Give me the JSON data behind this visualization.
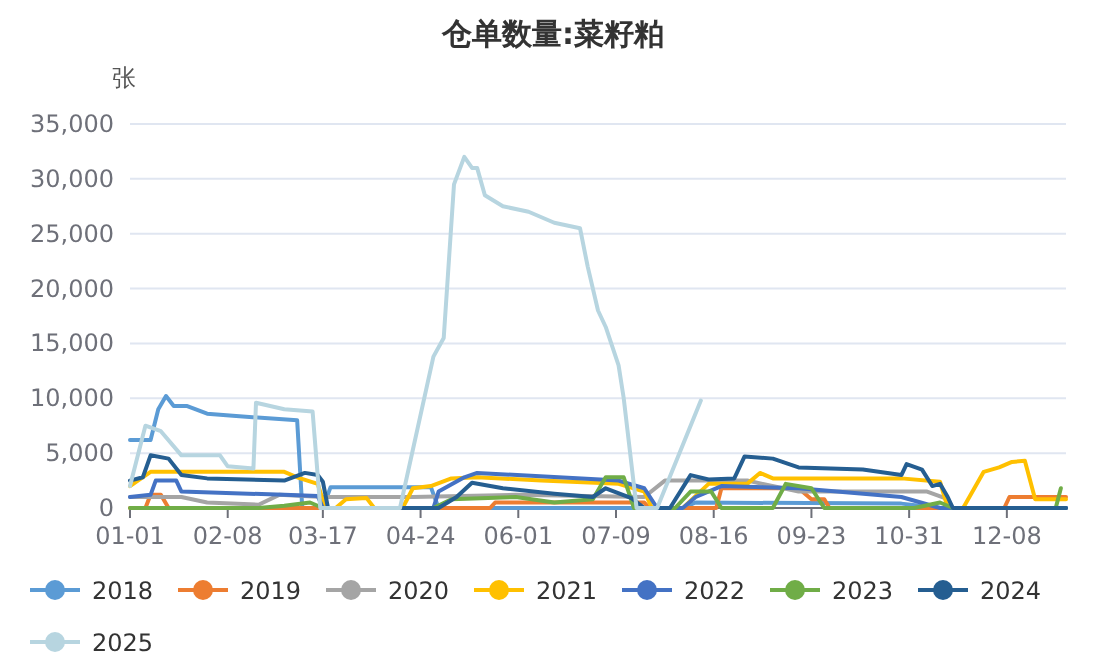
{
  "chart_data": {
    "type": "line",
    "title": "仓单数量:菜籽粕",
    "ylabel": "张",
    "xlim": [
      "--01-01",
      "--12-31"
    ],
    "xticks": [
      {
        "value": "--01-01",
        "label": "01-01"
      },
      {
        "value": "--02-08",
        "label": "02-08"
      },
      {
        "value": "--03-17",
        "label": "03-17"
      },
      {
        "value": "--04-24",
        "label": "04-24"
      },
      {
        "value": "--06-01",
        "label": "06-01"
      },
      {
        "value": "--07-09",
        "label": "07-09"
      },
      {
        "value": "--08-16",
        "label": "08-16"
      },
      {
        "value": "--09-23",
        "label": "09-23"
      },
      {
        "value": "--10-31",
        "label": "10-31"
      },
      {
        "value": "--12-08",
        "label": "12-08"
      }
    ],
    "ylim": [
      0,
      35000
    ],
    "yticks": [
      {
        "value": 0,
        "label": "0"
      },
      {
        "value": 5000,
        "label": "5,000"
      },
      {
        "value": 10000,
        "label": "10,000"
      },
      {
        "value": 15000,
        "label": "15,000"
      },
      {
        "value": 20000,
        "label": "20,000"
      },
      {
        "value": 25000,
        "label": "25,000"
      },
      {
        "value": 30000,
        "label": "30,000"
      },
      {
        "value": 35000,
        "label": "35,000"
      }
    ],
    "grid": "y",
    "legend": "bottom",
    "marker": "none",
    "line_style": "solid",
    "series": [
      {
        "name": "2018",
        "color": "#5b9bd5",
        "x": [
          "--01-01",
          "--01-09",
          "--01-12",
          "--01-15",
          "--01-18",
          "--01-23",
          "--01-31",
          "--02-10",
          "--03-07",
          "--03-09",
          "--03-17",
          "--03-20",
          "--04-28",
          "--05-01",
          "--08-04",
          "--08-09",
          "--10-28",
          "--11-12",
          "--12-31"
        ],
        "values": [
          6200,
          6200,
          9000,
          10200,
          9300,
          9300,
          8600,
          8400,
          8000,
          0,
          0,
          1900,
          1900,
          0,
          0,
          500,
          400,
          0,
          0
        ]
      },
      {
        "name": "2019",
        "color": "#ed7d31",
        "x": [
          "--01-01",
          "--01-07",
          "--01-09",
          "--01-13",
          "--01-16",
          "--05-21",
          "--05-23",
          "--07-20",
          "--07-22",
          "--08-17",
          "--08-19",
          "--09-18",
          "--09-23",
          "--09-28",
          "--09-30",
          "--12-07",
          "--12-09",
          "--12-31"
        ],
        "values": [
          0,
          0,
          1200,
          1200,
          0,
          0,
          500,
          500,
          0,
          0,
          1800,
          1800,
          800,
          800,
          0,
          0,
          1000,
          1000
        ]
      },
      {
        "name": "2020",
        "color": "#a5a5a5",
        "x": [
          "--01-01",
          "--01-21",
          "--01-31",
          "--02-20",
          "--02-28",
          "--03-17",
          "--04-21",
          "--05-31",
          "--07-20",
          "--07-28",
          "--08-29",
          "--09-18",
          "--11-07",
          "--11-15",
          "--11-17",
          "--12-31"
        ],
        "values": [
          1000,
          1000,
          500,
          300,
          1200,
          1000,
          1000,
          1200,
          1000,
          2500,
          2500,
          1500,
          1500,
          800,
          0,
          0
        ]
      },
      {
        "name": "2021",
        "color": "#ffc000",
        "x": [
          "--01-01",
          "--01-09",
          "--03-02",
          "--03-07",
          "--03-15",
          "--03-18",
          "--03-22",
          "--03-26",
          "--04-03",
          "--04-06",
          "--04-17",
          "--04-21",
          "--04-28",
          "--05-06",
          "--05-16",
          "--06-10",
          "--07-10",
          "--07-20",
          "--07-23",
          "--08-04",
          "--08-14",
          "--08-29",
          "--09-03",
          "--09-08",
          "--10-28",
          "--11-12",
          "--11-15",
          "--11-21",
          "--11-29",
          "--12-05",
          "--12-10",
          "--12-15",
          "--12-19",
          "--12-31"
        ],
        "values": [
          2000,
          3300,
          3300,
          2800,
          2200,
          0,
          0,
          800,
          900,
          0,
          0,
          1800,
          2000,
          2700,
          2800,
          2500,
          2200,
          1500,
          0,
          0,
          2200,
          2200,
          3200,
          2700,
          2700,
          2400,
          0,
          0,
          3300,
          3700,
          4200,
          4300,
          800,
          800
        ]
      },
      {
        "name": "2022",
        "color": "#4472c4",
        "x": [
          "--01-01",
          "--01-09",
          "--01-11",
          "--01-19",
          "--01-21",
          "--03-02",
          "--03-15",
          "--03-17",
          "--04-29",
          "--05-01",
          "--05-11",
          "--05-16",
          "--07-10",
          "--07-20",
          "--07-25",
          "--08-04",
          "--08-09",
          "--08-19",
          "--09-18",
          "--10-28",
          "--11-12",
          "--12-31"
        ],
        "values": [
          1000,
          1200,
          2500,
          2500,
          1500,
          1200,
          1100,
          0,
          0,
          1500,
          2800,
          3200,
          2500,
          1800,
          0,
          0,
          1000,
          2000,
          1800,
          1000,
          0,
          0
        ]
      },
      {
        "name": "2023",
        "color": "#70ad47",
        "x": [
          "--01-01",
          "--02-20",
          "--03-02",
          "--03-12",
          "--03-17",
          "--04-29",
          "--05-06",
          "--05-31",
          "--06-15",
          "--06-30",
          "--07-05",
          "--07-12",
          "--07-16",
          "--08-01",
          "--08-07",
          "--08-15",
          "--08-19",
          "--09-08",
          "--09-13",
          "--09-23",
          "--09-28",
          "--11-02",
          "--11-12",
          "--11-17",
          "--12-27",
          "--12-29"
        ],
        "values": [
          0,
          0,
          200,
          500,
          0,
          0,
          800,
          1000,
          500,
          800,
          2800,
          2800,
          0,
          0,
          1500,
          1500,
          0,
          0,
          2200,
          1800,
          0,
          0,
          500,
          0,
          0,
          1800
        ]
      },
      {
        "name": "2024",
        "color": "#255e91",
        "x": [
          "--01-01",
          "--01-06",
          "--01-09",
          "--01-16",
          "--01-21",
          "--01-31",
          "--03-02",
          "--03-10",
          "--03-15",
          "--03-17",
          "--03-19",
          "--05-01",
          "--05-08",
          "--05-14",
          "--05-26",
          "--06-15",
          "--06-30",
          "--07-05",
          "--07-15",
          "--07-20",
          "--07-30",
          "--08-07",
          "--08-14",
          "--08-24",
          "--08-28",
          "--09-08",
          "--09-18",
          "--10-13",
          "--10-28",
          "--10-30",
          "--11-05",
          "--11-09",
          "--11-12",
          "--11-15",
          "--11-17",
          "--12-31"
        ],
        "values": [
          2500,
          2800,
          4800,
          4500,
          3000,
          2700,
          2500,
          3200,
          3000,
          2400,
          0,
          0,
          1000,
          2300,
          1800,
          1300,
          1000,
          1800,
          900,
          0,
          0,
          3000,
          2600,
          2700,
          4700,
          4500,
          3700,
          3500,
          3000,
          4000,
          3500,
          2000,
          2200,
          1000,
          0,
          0
        ]
      },
      {
        "name": "2025",
        "color": "#b7d5e0",
        "x": [
          "--01-01",
          "--01-07",
          "--01-13",
          "--01-21",
          "--02-05",
          "--02-08",
          "--02-18",
          "--02-19",
          "--03-02",
          "--03-13",
          "--03-16",
          "--04-16",
          "--04-29",
          "--05-03",
          "--05-07",
          "--05-11",
          "--05-14",
          "--05-16",
          "--05-19",
          "--05-26",
          "--06-05",
          "--06-15",
          "--06-25",
          "--06-28",
          "--07-02",
          "--07-05",
          "--07-10",
          "--07-12",
          "--07-17",
          "--07-25",
          "--08-11"
        ],
        "values": [
          2000,
          7500,
          7000,
          4800,
          4800,
          3800,
          3600,
          9600,
          9000,
          8800,
          0,
          0,
          13800,
          15500,
          29500,
          32000,
          31000,
          31000,
          28500,
          27500,
          27000,
          26000,
          25500,
          22000,
          18000,
          16500,
          13000,
          10000,
          0,
          0,
          9800
        ]
      }
    ]
  }
}
